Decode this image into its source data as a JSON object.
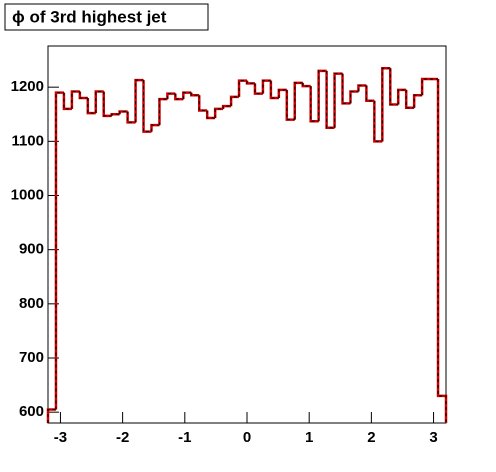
{
  "chart_data": {
    "type": "histogram",
    "title": "ϕ of 3rd highest jet",
    "color": "#cc0000",
    "bins": [
      -3.2,
      -3.072,
      -2.944,
      -2.816,
      -2.688,
      -2.56,
      -2.432,
      -2.304,
      -2.176,
      -2.048,
      -1.92,
      -1.792,
      -1.664,
      -1.536,
      -1.408,
      -1.28,
      -1.152,
      -1.024,
      -0.896,
      -0.768,
      -0.64,
      -0.512,
      -0.384,
      -0.256,
      -0.128,
      0,
      0.128,
      0.256,
      0.384,
      0.512,
      0.64,
      0.768,
      0.896,
      1.024,
      1.152,
      1.28,
      1.408,
      1.536,
      1.664,
      1.792,
      1.92,
      2.048,
      2.176,
      2.304,
      2.432,
      2.56,
      2.688,
      2.816,
      2.944,
      3.072,
      3.2
    ],
    "values": [
      605,
      1190,
      1160,
      1192,
      1180,
      1152,
      1192,
      1147,
      1150,
      1155,
      1135,
      1213,
      1118,
      1130,
      1178,
      1188,
      1178,
      1190,
      1185,
      1157,
      1143,
      1160,
      1165,
      1182,
      1212,
      1207,
      1188,
      1212,
      1180,
      1195,
      1140,
      1208,
      1202,
      1137,
      1230,
      1125,
      1225,
      1170,
      1192,
      1203,
      1175,
      1100,
      1235,
      1168,
      1195,
      1162,
      1185,
      1215,
      1215,
      630
    ],
    "xlim": [
      -3.2,
      3.2
    ],
    "ylim": [
      580,
      1276
    ],
    "xticks": [
      -3,
      -2,
      -1,
      0,
      1,
      2,
      3
    ],
    "yticks": [
      600,
      700,
      800,
      900,
      1000,
      1100,
      1200
    ]
  }
}
